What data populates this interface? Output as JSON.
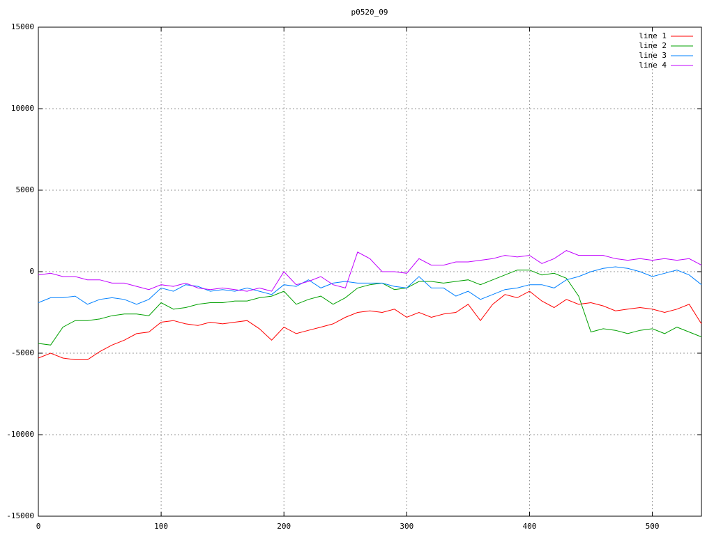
{
  "chart_data": {
    "type": "line",
    "title": "p0520_09",
    "x": [
      0,
      10,
      20,
      30,
      40,
      50,
      60,
      70,
      80,
      90,
      100,
      110,
      120,
      130,
      140,
      150,
      160,
      170,
      180,
      190,
      200,
      210,
      220,
      230,
      240,
      250,
      260,
      270,
      280,
      290,
      300,
      310,
      320,
      330,
      340,
      350,
      360,
      370,
      380,
      390,
      400,
      410,
      420,
      430,
      440,
      450,
      460,
      470,
      480,
      490,
      500,
      510,
      520,
      530,
      540
    ],
    "series": [
      {
        "name": "line 1",
        "color": "#ff0000",
        "values": [
          -5300,
          -5000,
          -5300,
          -5400,
          -5400,
          -4900,
          -4500,
          -4200,
          -3800,
          -3700,
          -3100,
          -3000,
          -3200,
          -3300,
          -3100,
          -3200,
          -3100,
          -3000,
          -3500,
          -4200,
          -3400,
          -3800,
          -3600,
          -3400,
          -3200,
          -2800,
          -2500,
          -2400,
          -2500,
          -2300,
          -2800,
          -2500,
          -2800,
          -2600,
          -2500,
          -2000,
          -3000,
          -2000,
          -1400,
          -1600,
          -1200,
          -1800,
          -2200,
          -1700,
          -2000,
          -1900,
          -2100,
          -2400,
          -2300,
          -2200,
          -2300,
          -2500,
          -2300,
          -2000,
          -3200
        ]
      },
      {
        "name": "line 2",
        "color": "#00a000",
        "values": [
          -4400,
          -4500,
          -3400,
          -3000,
          -3000,
          -2900,
          -2700,
          -2600,
          -2600,
          -2700,
          -1900,
          -2300,
          -2200,
          -2000,
          -1900,
          -1900,
          -1800,
          -1800,
          -1600,
          -1500,
          -1200,
          -2000,
          -1700,
          -1500,
          -2000,
          -1600,
          -1000,
          -800,
          -700,
          -1100,
          -1000,
          -600,
          -600,
          -700,
          -600,
          -500,
          -800,
          -500,
          -200,
          100,
          100,
          -200,
          -100,
          -400,
          -1500,
          -3700,
          -3500,
          -3600,
          -3800,
          -3600,
          -3500,
          -3800,
          -3400,
          -3700,
          -4000
        ]
      },
      {
        "name": "line 3",
        "color": "#0080ff",
        "values": [
          -1900,
          -1600,
          -1600,
          -1500,
          -2000,
          -1700,
          -1600,
          -1700,
          -2000,
          -1700,
          -1000,
          -1200,
          -800,
          -900,
          -1200,
          -1100,
          -1200,
          -1000,
          -1200,
          -1400,
          -800,
          -900,
          -500,
          -1000,
          -700,
          -600,
          -700,
          -700,
          -700,
          -900,
          -1000,
          -300,
          -1000,
          -1000,
          -1500,
          -1200,
          -1700,
          -1400,
          -1100,
          -1000,
          -800,
          -800,
          -1000,
          -500,
          -300,
          0,
          200,
          300,
          200,
          0,
          -300,
          -100,
          100,
          -200,
          -800
        ]
      },
      {
        "name": "line 4",
        "color": "#c000ff",
        "values": [
          -200,
          -100,
          -300,
          -300,
          -500,
          -500,
          -700,
          -700,
          -900,
          -1100,
          -800,
          -900,
          -700,
          -1000,
          -1100,
          -1000,
          -1100,
          -1200,
          -1000,
          -1200,
          0,
          -800,
          -600,
          -300,
          -800,
          -1000,
          1200,
          800,
          0,
          0,
          -100,
          800,
          400,
          400,
          600,
          600,
          700,
          800,
          1000,
          900,
          1000,
          500,
          800,
          1300,
          1000,
          1000,
          1000,
          800,
          700,
          800,
          700,
          800,
          700,
          800,
          400
        ]
      }
    ],
    "xlim": [
      0,
      540
    ],
    "xticks": [
      0,
      100,
      200,
      300,
      400,
      500
    ],
    "ylim": [
      -15000,
      15000
    ],
    "yticks": [
      -15000,
      -10000,
      -5000,
      0,
      5000,
      10000,
      15000
    ],
    "grid": true,
    "legend": "top-right"
  }
}
